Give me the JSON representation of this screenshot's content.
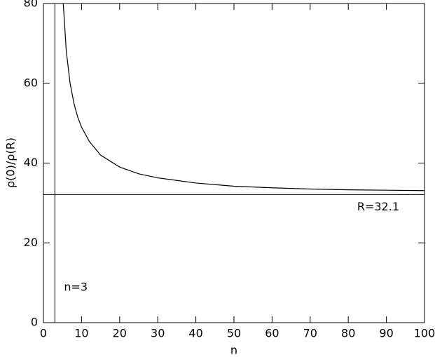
{
  "chart_data": {
    "type": "line",
    "xlabel": "n",
    "ylabel": "ρ(0)/ρ(R)",
    "x": [
      5.2,
      6,
      7,
      8,
      9,
      10,
      12,
      15,
      20,
      25,
      30,
      40,
      50,
      60,
      70,
      80,
      90,
      100
    ],
    "series": [
      {
        "color": "#000000",
        "values": [
          80,
          68,
          60,
          55,
          51.5,
          49,
          45.5,
          42,
          39,
          37.3,
          36.3,
          35,
          34.2,
          33.8,
          33.5,
          33.3,
          33.2,
          33.1
        ]
      }
    ],
    "reference_lines": [
      {
        "axis": "y",
        "value": 32.1,
        "label": "R=32.1"
      },
      {
        "axis": "x",
        "value": 3,
        "label": "n=3"
      }
    ],
    "xlim": [
      0,
      100
    ],
    "xticks": [
      0,
      10,
      20,
      30,
      40,
      50,
      60,
      70,
      80,
      90,
      100
    ],
    "ylim": [
      0,
      80
    ],
    "yticks": [
      0,
      20,
      40,
      60,
      80
    ]
  }
}
